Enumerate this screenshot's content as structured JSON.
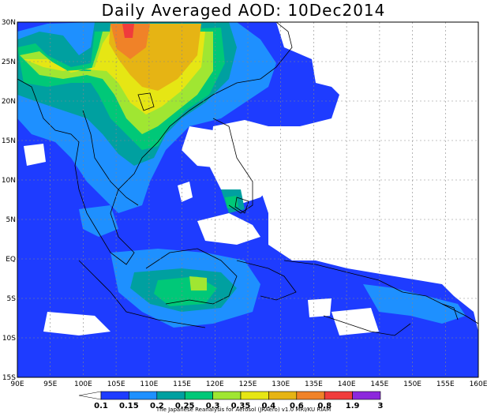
{
  "title": "Daily Averaged AOD: 10Dec2014",
  "credit": "The Japanese Reanalysis for Aerosol (JRAero) v1.0 MRI/KU RIAM",
  "chart_data": {
    "type": "heatmap",
    "title": "Daily Averaged AOD: 10Dec2014",
    "xlim": [
      90,
      160
    ],
    "ylim": [
      -15,
      30
    ],
    "grid": true,
    "x_ticks": [
      "90E",
      "95E",
      "100E",
      "105E",
      "110E",
      "115E",
      "120E",
      "125E",
      "130E",
      "135E",
      "140E",
      "145E",
      "150E",
      "155E",
      "160E"
    ],
    "y_ticks": [
      "15S",
      "10S",
      "5S",
      "EQ",
      "5N",
      "10N",
      "15N",
      "20N",
      "25N",
      "30N"
    ],
    "colorbar": {
      "levels": [
        "0.1",
        "0.15",
        "0.2",
        "0.25",
        "0.3",
        "0.35",
        "0.4",
        "0.6",
        "0.8",
        "1.9",
        "3"
      ],
      "colors": [
        "#ffffff",
        "#1e3cff",
        "#1e90ff",
        "#00a0a0",
        "#00c878",
        "#a0e632",
        "#e6e614",
        "#e6b414",
        "#f08228",
        "#f03c3c",
        "#8c28dc"
      ]
    }
  }
}
